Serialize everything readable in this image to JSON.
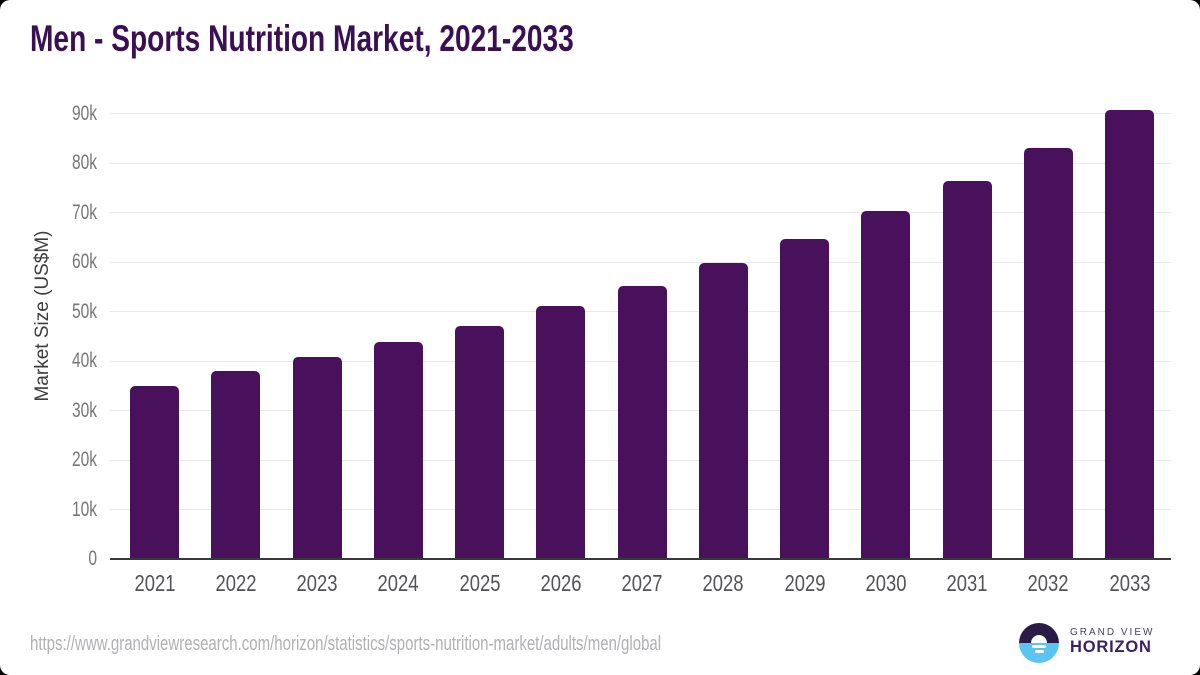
{
  "title": "Men - Sports Nutrition Market, 2021-2033",
  "colors": {
    "bar": "#49115c",
    "title": "#3a1053",
    "gridline": "#e9e9e9",
    "axis": "#38383a",
    "ytick": "#767676",
    "xtick": "#525255",
    "ylabel": "#3d3d3f",
    "url": "#b1b1b4",
    "logo_dark": "#2b1b47",
    "logo_blue": "#5bc4f0",
    "logo_gv": "#47475c",
    "logo_hz": "#3a2164"
  },
  "chart_data": {
    "type": "bar",
    "title": "Men - Sports Nutrition Market, 2021-2033",
    "categories": [
      "2021",
      "2022",
      "2023",
      "2024",
      "2025",
      "2026",
      "2027",
      "2028",
      "2029",
      "2030",
      "2031",
      "2032",
      "2033"
    ],
    "values": [
      34900,
      38000,
      40800,
      43900,
      47200,
      51200,
      55300,
      59800,
      64700,
      70400,
      76500,
      83200,
      90700
    ],
    "xlabel": "",
    "ylabel": "Market Size (US$M)",
    "ylim": [
      0,
      90000
    ],
    "ytick_interval": 10000,
    "ytick_labels": [
      "0",
      "10k",
      "20k",
      "30k",
      "40k",
      "50k",
      "60k",
      "70k",
      "80k",
      "90k"
    ],
    "grid": "horizontal",
    "legend": "none",
    "bar_color": "#49115c"
  },
  "footer": {
    "source_url": "https://www.grandviewresearch.com/horizon/statistics/sports-nutrition-market/adults/men/global",
    "logo": {
      "line1": "GRAND VIEW",
      "line2": "HORIZON"
    }
  }
}
